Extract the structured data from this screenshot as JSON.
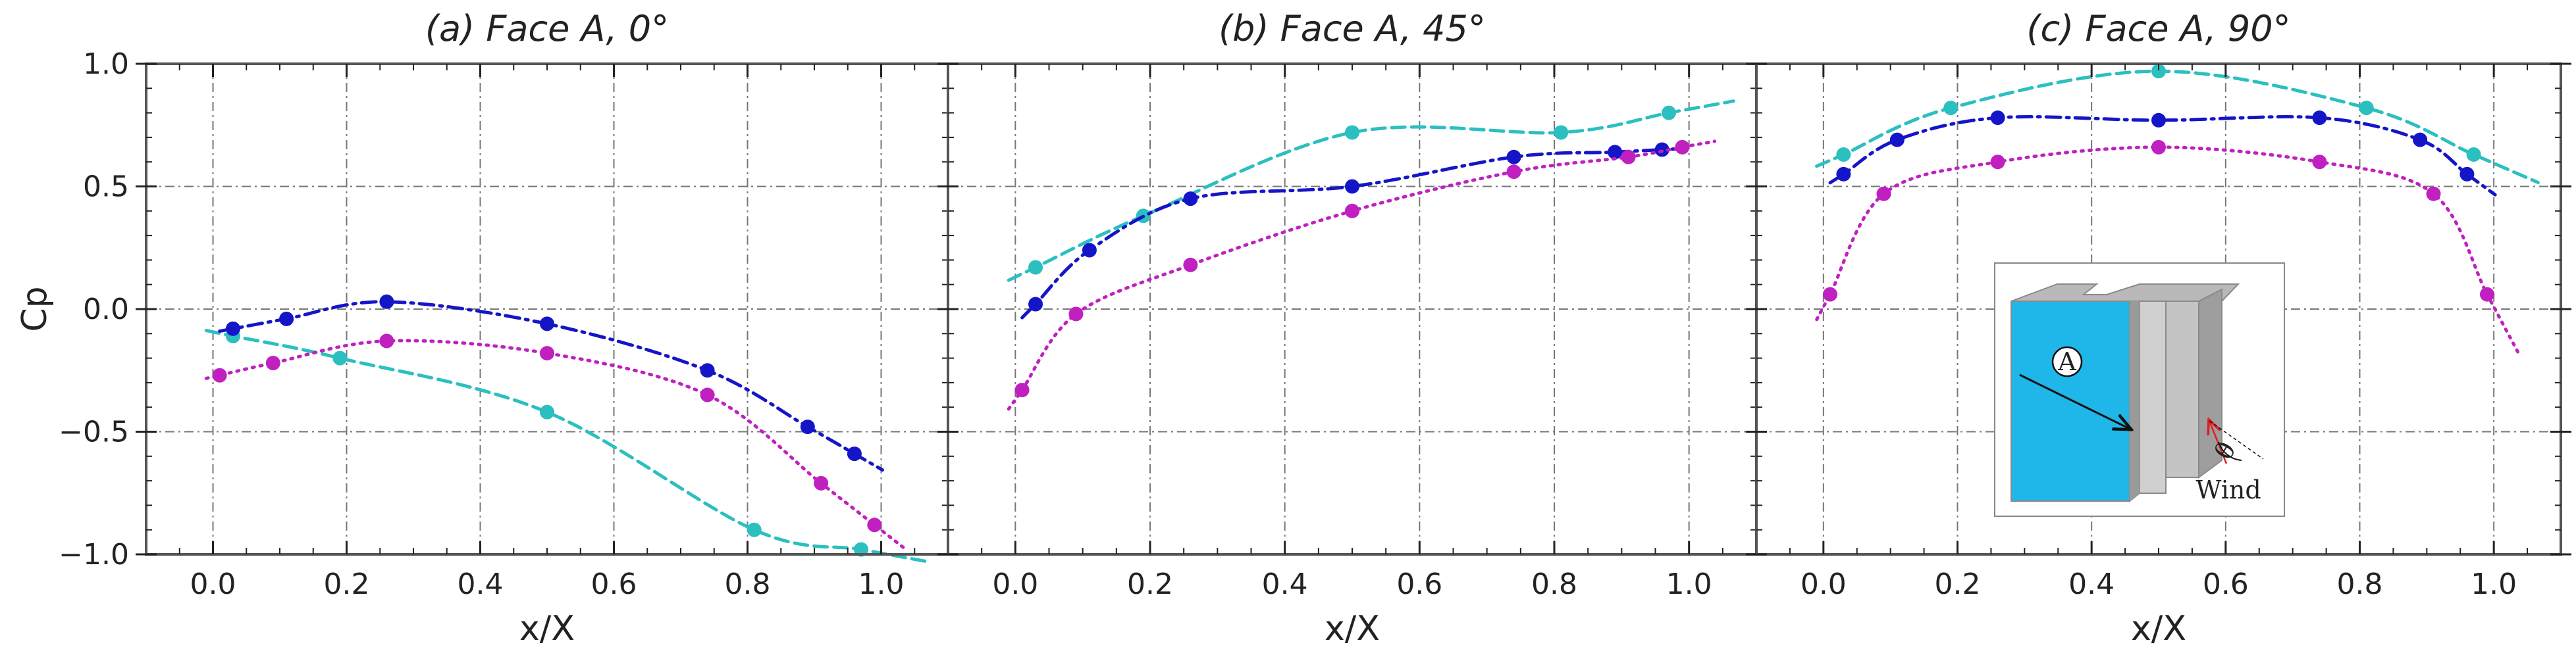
{
  "chart_data": [
    {
      "type": "line",
      "title": "(a) Face A, 0°",
      "xlabel": "x/X",
      "ylabel": "Cp",
      "xlim": [
        -0.1,
        1.1
      ],
      "ylim": [
        -1.0,
        1.0
      ],
      "xticks": [
        "0.0",
        "0.2",
        "0.4",
        "0.6",
        "0.8",
        "1.0"
      ],
      "yticks": [
        "−1.0",
        "−0.5",
        "0.0",
        "0.5",
        "1.0"
      ],
      "grid": true,
      "series": [
        {
          "name": "cyan",
          "color": "#2bbfc0",
          "dash": "dashed",
          "x": [
            0.03,
            0.19,
            0.5,
            0.81,
            0.97
          ],
          "y": [
            -0.11,
            -0.2,
            -0.42,
            -0.9,
            -0.98
          ]
        },
        {
          "name": "blue",
          "color": "#1515c8",
          "dash": "dashdot",
          "x": [
            0.03,
            0.11,
            0.26,
            0.5,
            0.74,
            0.89,
            0.96
          ],
          "y": [
            -0.08,
            -0.04,
            0.03,
            -0.06,
            -0.25,
            -0.48,
            -0.59
          ]
        },
        {
          "name": "magenta",
          "color": "#c020c0",
          "dash": "dotted",
          "x": [
            0.01,
            0.09,
            0.26,
            0.5,
            0.74,
            0.91,
            0.99
          ],
          "y": [
            -0.27,
            -0.22,
            -0.13,
            -0.18,
            -0.35,
            -0.71,
            -0.88
          ]
        }
      ]
    },
    {
      "type": "line",
      "title": "(b) Face A, 45°",
      "xlabel": "x/X",
      "ylabel": "",
      "xlim": [
        -0.1,
        1.1
      ],
      "ylim": [
        -1.0,
        1.0
      ],
      "xticks": [
        "0.0",
        "0.2",
        "0.4",
        "0.6",
        "0.8",
        "1.0"
      ],
      "yticks": [
        "−1.0",
        "−0.5",
        "0.0",
        "0.5",
        "1.0"
      ],
      "grid": true,
      "series": [
        {
          "name": "cyan",
          "color": "#2bbfc0",
          "dash": "dashed",
          "x": [
            0.03,
            0.19,
            0.5,
            0.81,
            0.97
          ],
          "y": [
            0.17,
            0.38,
            0.72,
            0.72,
            0.8
          ]
        },
        {
          "name": "blue",
          "color": "#1515c8",
          "dash": "dashdot",
          "x": [
            0.03,
            0.11,
            0.26,
            0.5,
            0.74,
            0.89,
            0.96
          ],
          "y": [
            0.02,
            0.24,
            0.45,
            0.5,
            0.62,
            0.64,
            0.65
          ]
        },
        {
          "name": "magenta",
          "color": "#c020c0",
          "dash": "dotted",
          "x": [
            0.01,
            0.09,
            0.26,
            0.5,
            0.74,
            0.91,
            0.99
          ],
          "y": [
            -0.33,
            -0.02,
            0.18,
            0.4,
            0.56,
            0.62,
            0.66
          ]
        }
      ]
    },
    {
      "type": "line",
      "title": "(c) Face A, 90°",
      "xlabel": "x/X",
      "ylabel": "",
      "xlim": [
        -0.1,
        1.1
      ],
      "ylim": [
        -1.0,
        1.0
      ],
      "xticks": [
        "0.0",
        "0.2",
        "0.4",
        "0.6",
        "0.8",
        "1.0"
      ],
      "yticks": [
        "−1.0",
        "−0.5",
        "0.0",
        "0.5",
        "1.0"
      ],
      "grid": true,
      "series": [
        {
          "name": "cyan",
          "color": "#2bbfc0",
          "dash": "dashed",
          "x": [
            0.03,
            0.19,
            0.5,
            0.81,
            0.97
          ],
          "y": [
            0.63,
            0.82,
            0.97,
            0.82,
            0.63
          ]
        },
        {
          "name": "blue",
          "color": "#1515c8",
          "dash": "dashdot",
          "x": [
            0.03,
            0.11,
            0.26,
            0.5,
            0.74,
            0.89,
            0.96
          ],
          "y": [
            0.55,
            0.69,
            0.78,
            0.77,
            0.78,
            0.69,
            0.55
          ]
        },
        {
          "name": "magenta",
          "color": "#c020c0",
          "dash": "dotted",
          "x": [
            0.01,
            0.09,
            0.26,
            0.5,
            0.74,
            0.91,
            0.99
          ],
          "y": [
            0.06,
            0.47,
            0.6,
            0.66,
            0.6,
            0.47,
            0.06
          ]
        }
      ],
      "inset": {
        "face_label": "A",
        "angle_label": "θ",
        "wind_label": "Wind"
      }
    }
  ]
}
